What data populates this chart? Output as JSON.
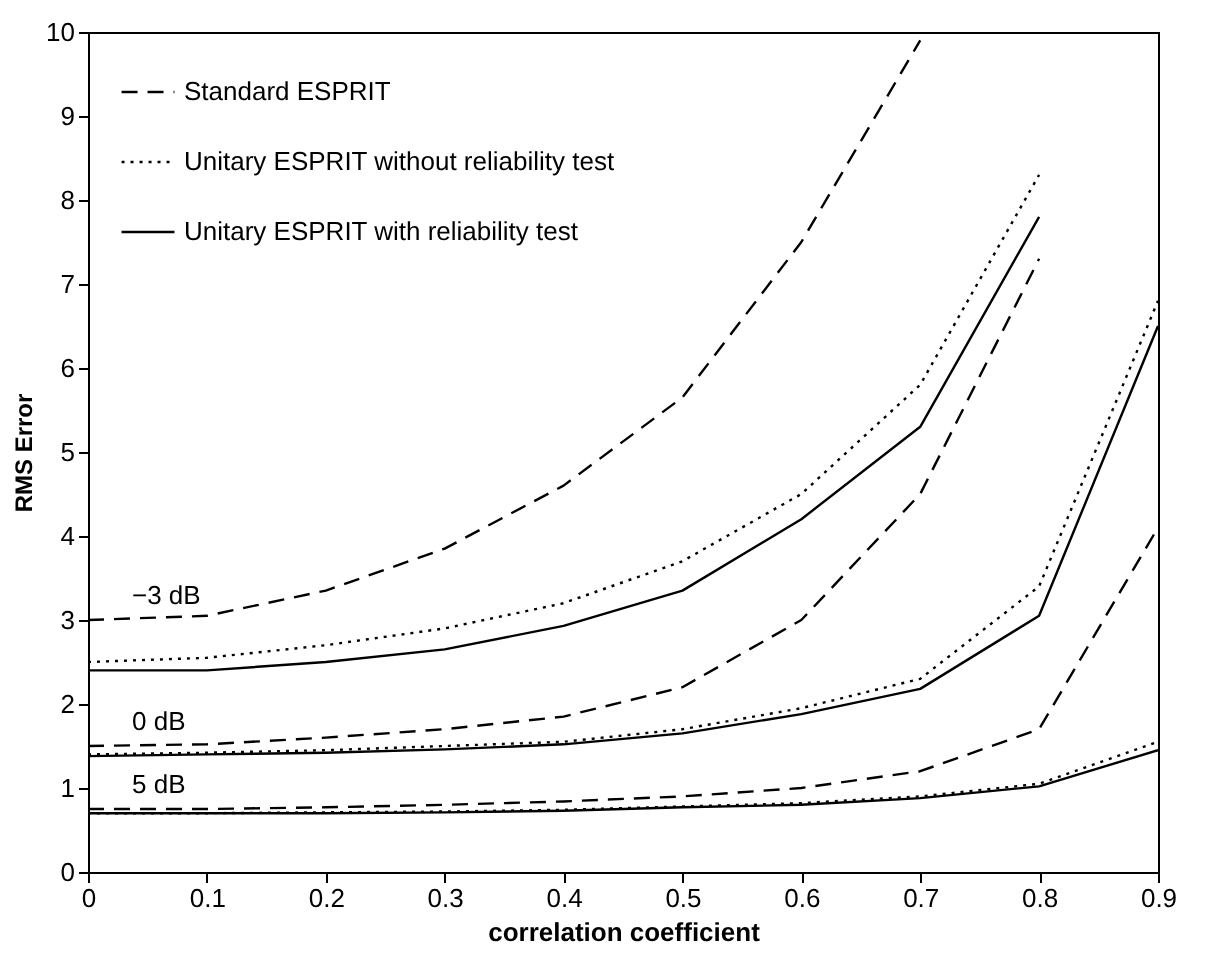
{
  "chart_data": {
    "type": "line",
    "xlabel": "correlation coefficient",
    "ylabel": "RMS Error",
    "x": [
      0,
      0.1,
      0.2,
      0.3,
      0.4,
      0.5,
      0.6,
      0.7,
      0.8,
      0.9
    ],
    "series": [
      {
        "name": "Standard ESPRIT",
        "color": "#000000",
        "line_style": "dashed",
        "values": [
          3.0,
          3.05,
          3.35,
          3.85,
          4.6,
          5.65,
          7.5,
          9.9,
          null,
          null
        ]
      },
      {
        "name": "Unitary ESPRIT without reliability test",
        "color": "#000000",
        "line_style": "dotted",
        "values": [
          2.5,
          2.55,
          2.7,
          2.9,
          3.2,
          3.7,
          4.5,
          5.8,
          8.3,
          null
        ]
      },
      {
        "name": "Unitary ESPRIT with reliability test",
        "color": "#000000",
        "line_style": "solid",
        "values": [
          2.4,
          2.4,
          2.5,
          2.65,
          2.93,
          3.35,
          4.2,
          5.3,
          7.8,
          null
        ]
      },
      {
        "color": "#000000",
        "line_style": "dashed",
        "values": [
          1.5,
          1.52,
          1.6,
          1.7,
          1.85,
          2.2,
          3.0,
          4.5,
          7.3,
          null
        ]
      },
      {
        "color": "#000000",
        "line_style": "dotted",
        "values": [
          1.4,
          1.42,
          1.45,
          1.5,
          1.55,
          1.7,
          1.95,
          2.3,
          3.4,
          6.8
        ]
      },
      {
        "color": "#000000",
        "line_style": "solid",
        "values": [
          1.38,
          1.4,
          1.42,
          1.46,
          1.52,
          1.65,
          1.88,
          2.18,
          3.05,
          6.5
        ]
      },
      {
        "color": "#000000",
        "line_style": "dashed",
        "values": [
          0.75,
          0.75,
          0.77,
          0.8,
          0.84,
          0.9,
          1.0,
          1.2,
          1.7,
          4.1
        ]
      },
      {
        "color": "#000000",
        "line_style": "dotted",
        "values": [
          0.7,
          0.7,
          0.71,
          0.72,
          0.74,
          0.78,
          0.82,
          0.9,
          1.05,
          1.55
        ]
      },
      {
        "color": "#000000",
        "line_style": "solid",
        "values": [
          0.7,
          0.7,
          0.7,
          0.71,
          0.73,
          0.77,
          0.8,
          0.88,
          1.02,
          1.45
        ]
      }
    ],
    "annotations": [
      "−3 dB",
      "0 dB",
      "5 dB"
    ],
    "xlim": [
      0,
      0.9
    ],
    "ylim": [
      0,
      10
    ],
    "xticks": [
      0,
      0.1,
      0.2,
      0.3,
      0.4,
      0.5,
      0.6,
      0.7,
      0.8,
      0.9
    ],
    "yticks": [
      0,
      1,
      2,
      3,
      4,
      5,
      6,
      7,
      8,
      9,
      10
    ],
    "grid": false,
    "legend": "top left"
  }
}
